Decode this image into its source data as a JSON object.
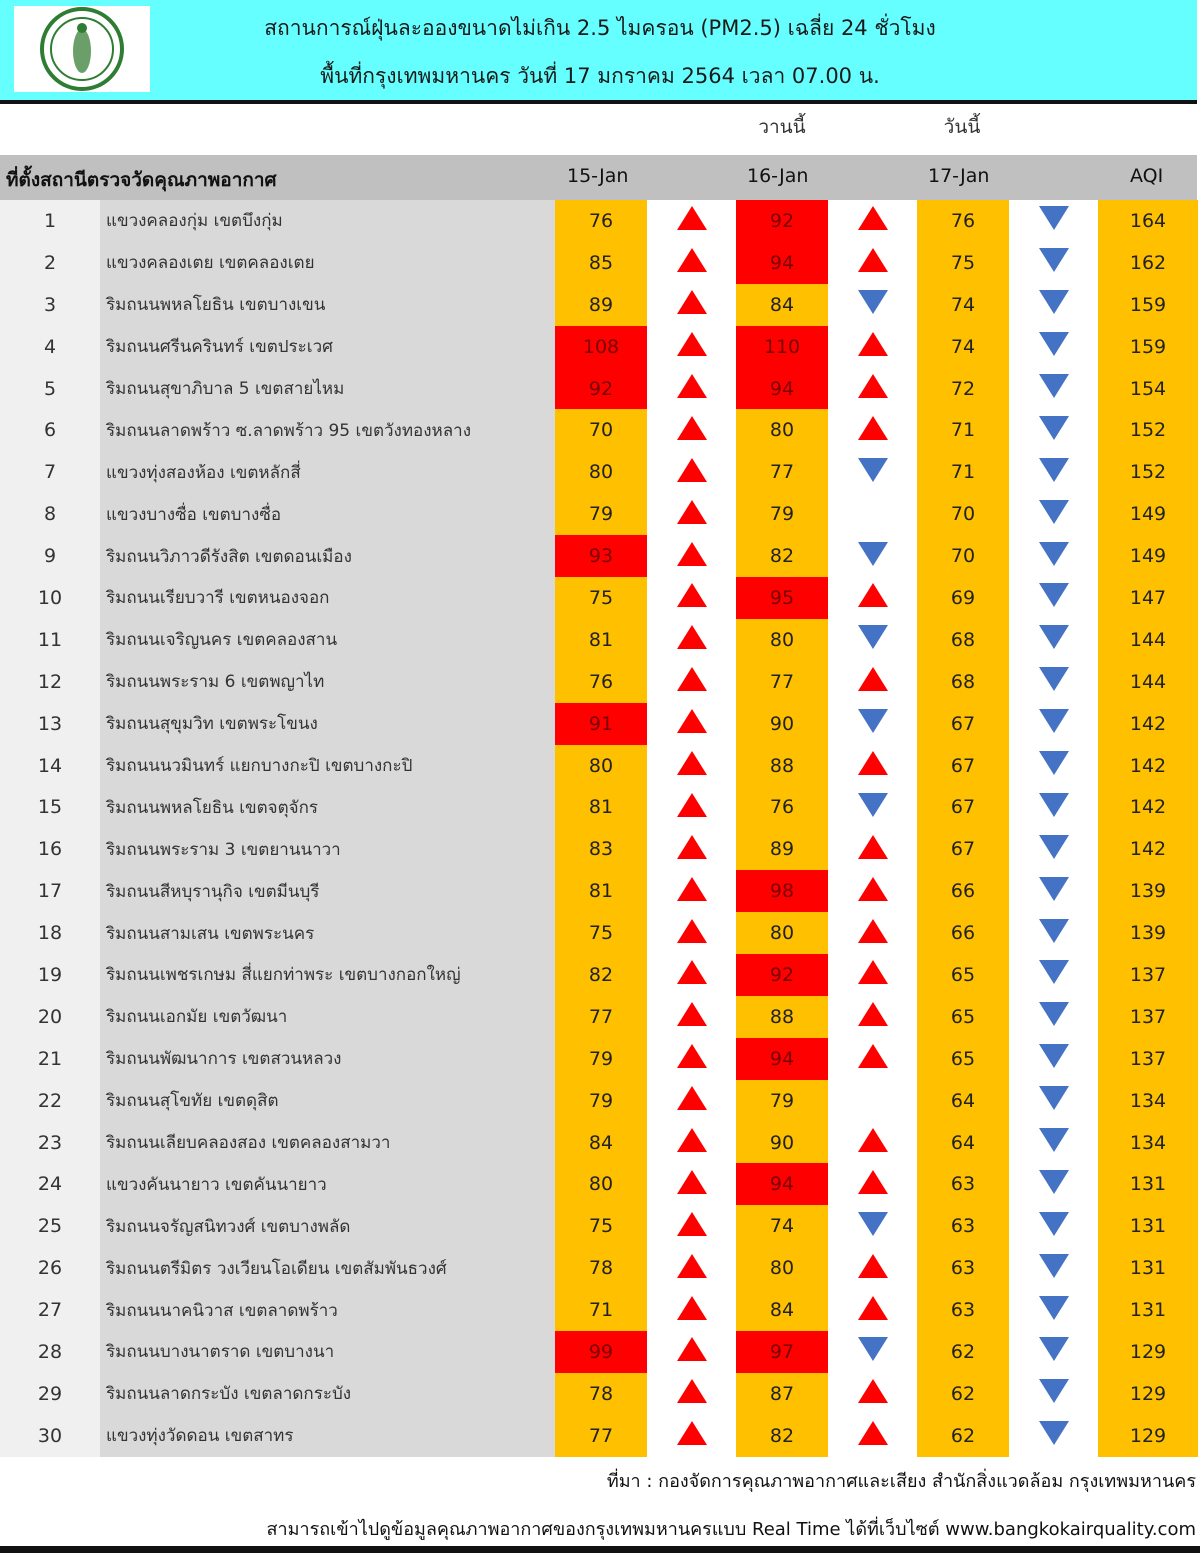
{
  "header": {
    "title_line1": "สถานการณ์ฝุ่นละอองขนาดไม่เกิน 2.5 ไมครอน (PM2.5) เฉลี่ย 24 ชั่วโมง",
    "title_line2": "พื้นที่กรุงเทพมหานคร วันที่ 17 มกราคม 2564 เวลา 07.00 น.",
    "logo": "bangkok-metropolitan-seal"
  },
  "sublabels": {
    "yesterday": "วานนี้",
    "today": "วันนี้"
  },
  "columns": {
    "location": "ที่ตั้งสถานีตรวจวัดคุณภาพอากาศ",
    "d1": "15-Jan",
    "d2": "16-Jan",
    "d3": "17-Jan",
    "aqi": "AQI"
  },
  "colors": {
    "header_bg": "#66ffff",
    "moderate": "#ffc000",
    "high": "#ff0000",
    "up_arrow": "#ff0000",
    "down_arrow": "#4472c4"
  },
  "rows": [
    {
      "no": "1",
      "name": "แขวงคลองกุ่ม เขตบึงกุ่ม",
      "d1": "76",
      "t1": "up",
      "d2": "92",
      "t2": "up",
      "d3": "76",
      "t3": "down",
      "aqi": "164",
      "hi": [
        false,
        true
      ]
    },
    {
      "no": "2",
      "name": "แขวงคลองเตย เขตคลองเตย",
      "d1": "85",
      "t1": "up",
      "d2": "94",
      "t2": "up",
      "d3": "75",
      "t3": "down",
      "aqi": "162",
      "hi": [
        false,
        true
      ]
    },
    {
      "no": "3",
      "name": "ริมถนนพหลโยธิน เขตบางเขน",
      "d1": "89",
      "t1": "up",
      "d2": "84",
      "t2": "down",
      "d3": "74",
      "t3": "down",
      "aqi": "159",
      "hi": [
        false,
        false
      ]
    },
    {
      "no": "4",
      "name": "ริมถนนศรีนครินทร์ เขตประเวศ",
      "d1": "108",
      "t1": "up",
      "d2": "110",
      "t2": "up",
      "d3": "74",
      "t3": "down",
      "aqi": "159",
      "hi": [
        true,
        true
      ]
    },
    {
      "no": "5",
      "name": "ริมถนนสุขาภิบาล 5 เขตสายไหม",
      "d1": "92",
      "t1": "up",
      "d2": "94",
      "t2": "up",
      "d3": "72",
      "t3": "down",
      "aqi": "154",
      "hi": [
        true,
        true
      ]
    },
    {
      "no": "6",
      "name": "ริมถนนลาดพร้าว ซ.ลาดพร้าว 95 เขตวังทองหลาง",
      "d1": "70",
      "t1": "up",
      "d2": "80",
      "t2": "up",
      "d3": "71",
      "t3": "down",
      "aqi": "152",
      "hi": [
        false,
        false
      ]
    },
    {
      "no": "7",
      "name": "แขวงทุ่งสองห้อง เขตหลักสี่",
      "d1": "80",
      "t1": "up",
      "d2": "77",
      "t2": "down",
      "d3": "71",
      "t3": "down",
      "aqi": "152",
      "hi": [
        false,
        false
      ]
    },
    {
      "no": "8",
      "name": "แขวงบางซื่อ เขตบางซื่อ",
      "d1": "79",
      "t1": "up",
      "d2": "79",
      "t2": "none",
      "d3": "70",
      "t3": "down",
      "aqi": "149",
      "hi": [
        false,
        false
      ]
    },
    {
      "no": "9",
      "name": "ริมถนนวิภาวดีรังสิต เขตดอนเมือง",
      "d1": "93",
      "t1": "up",
      "d2": "82",
      "t2": "down",
      "d3": "70",
      "t3": "down",
      "aqi": "149",
      "hi": [
        true,
        false
      ]
    },
    {
      "no": "10",
      "name": "ริมถนนเรียบวารี เขตหนองจอก",
      "d1": "75",
      "t1": "up",
      "d2": "95",
      "t2": "up",
      "d3": "69",
      "t3": "down",
      "aqi": "147",
      "hi": [
        false,
        true
      ]
    },
    {
      "no": "11",
      "name": "ริมถนนเจริญนคร เขตคลองสาน",
      "d1": "81",
      "t1": "up",
      "d2": "80",
      "t2": "down",
      "d3": "68",
      "t3": "down",
      "aqi": "144",
      "hi": [
        false,
        false
      ]
    },
    {
      "no": "12",
      "name": "ริมถนนพระราม 6 เขตพญาไท",
      "d1": "76",
      "t1": "up",
      "d2": "77",
      "t2": "up",
      "d3": "68",
      "t3": "down",
      "aqi": "144",
      "hi": [
        false,
        false
      ]
    },
    {
      "no": "13",
      "name": "ริมถนนสุขุมวิท เขตพระโขนง",
      "d1": "91",
      "t1": "up",
      "d2": "90",
      "t2": "down",
      "d3": "67",
      "t3": "down",
      "aqi": "142",
      "hi": [
        true,
        false
      ]
    },
    {
      "no": "14",
      "name": "ริมถนนนวมินทร์ แยกบางกะปิ เขตบางกะปิ",
      "d1": "80",
      "t1": "up",
      "d2": "88",
      "t2": "up",
      "d3": "67",
      "t3": "down",
      "aqi": "142",
      "hi": [
        false,
        false
      ]
    },
    {
      "no": "15",
      "name": "ริมถนนพหลโยธิน เขตจตุจักร",
      "d1": "81",
      "t1": "up",
      "d2": "76",
      "t2": "down",
      "d3": "67",
      "t3": "down",
      "aqi": "142",
      "hi": [
        false,
        false
      ]
    },
    {
      "no": "16",
      "name": "ริมถนนพระราม 3 เขตยานนาวา",
      "d1": "83",
      "t1": "up",
      "d2": "89",
      "t2": "up",
      "d3": "67",
      "t3": "down",
      "aqi": "142",
      "hi": [
        false,
        false
      ]
    },
    {
      "no": "17",
      "name": "ริมถนนสีหบุรานุกิจ เขตมีนบุรี",
      "d1": "81",
      "t1": "up",
      "d2": "98",
      "t2": "up",
      "d3": "66",
      "t3": "down",
      "aqi": "139",
      "hi": [
        false,
        true
      ]
    },
    {
      "no": "18",
      "name": "ริมถนนสามเสน เขตพระนคร",
      "d1": "75",
      "t1": "up",
      "d2": "80",
      "t2": "up",
      "d3": "66",
      "t3": "down",
      "aqi": "139",
      "hi": [
        false,
        false
      ]
    },
    {
      "no": "19",
      "name": "ริมถนนเพชรเกษม สี่แยกท่าพระ เขตบางกอกใหญ่",
      "d1": "82",
      "t1": "up",
      "d2": "92",
      "t2": "up",
      "d3": "65",
      "t3": "down",
      "aqi": "137",
      "hi": [
        false,
        true
      ]
    },
    {
      "no": "20",
      "name": "ริมถนนเอกมัย เขตวัฒนา",
      "d1": "77",
      "t1": "up",
      "d2": "88",
      "t2": "up",
      "d3": "65",
      "t3": "down",
      "aqi": "137",
      "hi": [
        false,
        false
      ]
    },
    {
      "no": "21",
      "name": "ริมถนนพัฒนาการ เขตสวนหลวง",
      "d1": "79",
      "t1": "up",
      "d2": "94",
      "t2": "up",
      "d3": "65",
      "t3": "down",
      "aqi": "137",
      "hi": [
        false,
        true
      ]
    },
    {
      "no": "22",
      "name": "ริมถนนสุโขทัย เขตดุสิต",
      "d1": "79",
      "t1": "up",
      "d2": "79",
      "t2": "none",
      "d3": "64",
      "t3": "down",
      "aqi": "134",
      "hi": [
        false,
        false
      ]
    },
    {
      "no": "23",
      "name": "ริมถนนเลียบคลองสอง เขตคลองสามวา",
      "d1": "84",
      "t1": "up",
      "d2": "90",
      "t2": "up",
      "d3": "64",
      "t3": "down",
      "aqi": "134",
      "hi": [
        false,
        false
      ]
    },
    {
      "no": "24",
      "name": "แขวงคันนายาว เขตคันนายาว",
      "d1": "80",
      "t1": "up",
      "d2": "94",
      "t2": "up",
      "d3": "63",
      "t3": "down",
      "aqi": "131",
      "hi": [
        false,
        true
      ]
    },
    {
      "no": "25",
      "name": "ริมถนนจรัญสนิทวงศ์ เขตบางพลัด",
      "d1": "75",
      "t1": "up",
      "d2": "74",
      "t2": "down",
      "d3": "63",
      "t3": "down",
      "aqi": "131",
      "hi": [
        false,
        false
      ]
    },
    {
      "no": "26",
      "name": "ริมถนนตรีมิตร วงเวียนโอเดียน เขตสัมพันธวงศ์",
      "d1": "78",
      "t1": "up",
      "d2": "80",
      "t2": "up",
      "d3": "63",
      "t3": "down",
      "aqi": "131",
      "hi": [
        false,
        false
      ]
    },
    {
      "no": "27",
      "name": "ริมถนนนาคนิวาส เขตลาดพร้าว",
      "d1": "71",
      "t1": "up",
      "d2": "84",
      "t2": "up",
      "d3": "63",
      "t3": "down",
      "aqi": "131",
      "hi": [
        false,
        false
      ]
    },
    {
      "no": "28",
      "name": "ริมถนนบางนาตราด เขตบางนา",
      "d1": "99",
      "t1": "up",
      "d2": "97",
      "t2": "down",
      "d3": "62",
      "t3": "down",
      "aqi": "129",
      "hi": [
        true,
        true
      ]
    },
    {
      "no": "29",
      "name": "ริมถนนลาดกระบัง เขตลาดกระบัง",
      "d1": "78",
      "t1": "up",
      "d2": "87",
      "t2": "up",
      "d3": "62",
      "t3": "down",
      "aqi": "129",
      "hi": [
        false,
        false
      ]
    },
    {
      "no": "30",
      "name": "แขวงทุ่งวัดดอน เขตสาทร",
      "d1": "77",
      "t1": "up",
      "d2": "82",
      "t2": "up",
      "d3": "62",
      "t3": "down",
      "aqi": "129",
      "hi": [
        false,
        false
      ]
    }
  ],
  "footer": {
    "source": "ที่มา : กองจัดการคุณภาพอากาศและเสียง สำนักสิ่งแวดล้อม กรุงเทพมหานคร",
    "website_note": "สามารถเข้าไปดูข้อมูลคุณภาพอากาศของกรุงเทพมหานครแบบ Real Time ได้ที่เว็บไซต์ www.bangkokairquality.com"
  }
}
